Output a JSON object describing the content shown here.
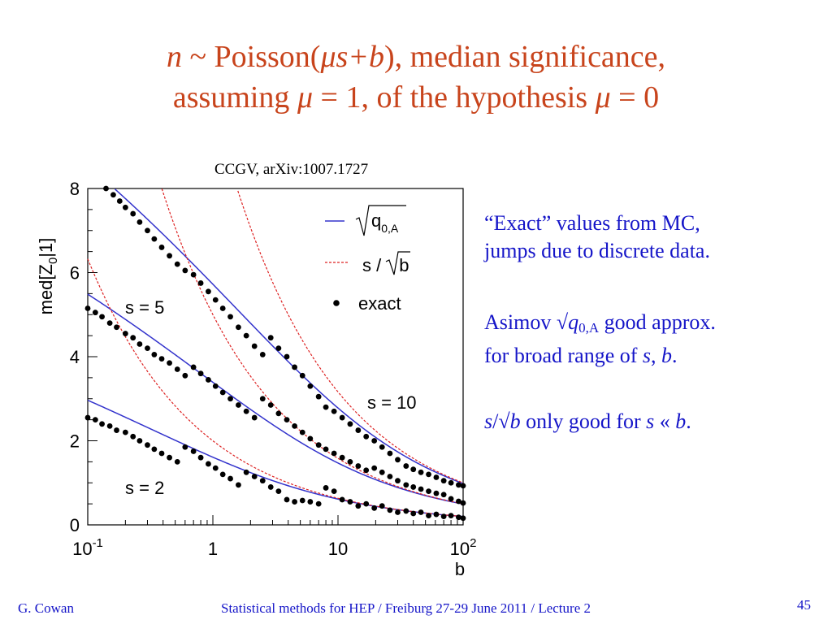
{
  "slide": {
    "title_line1": {
      "n": "n",
      "pre": " ~ Poisson(",
      "mu": "μ",
      "sb": "s+b",
      "post": "),  median significance,"
    },
    "title_line2": {
      "pre": "assuming ",
      "mu1": "μ",
      "mid": " = 1, of the hypothesis ",
      "mu2": "μ",
      "post": " = 0"
    },
    "citation": "CCGV, arXiv:1007.1727",
    "bullets": {
      "b1_line1": "“Exact” values from MC,",
      "b1_line2": "jumps due to discrete data.",
      "b2_a": "Asimov √",
      "b2_q": "q",
      "b2_sub": "0,A",
      "b2_b": " good approx.",
      "b2_line2_pre": "for broad range of ",
      "b2_s": "s",
      "b2_comma": ", ",
      "b2_bv": "b",
      "b2_dot": ".",
      "b3_s": "s",
      "b3_mid": "/√",
      "b3_b": "b",
      "b3_rest": " only good for ",
      "b3_s2": "s",
      "b3_ll": " « ",
      "b3_b2": "b",
      "b3_dot": "."
    },
    "footer_left": "G. Cowan",
    "footer_center": "Statistical methods for HEP / Freiburg 27-29 June 2011 / Lecture 2",
    "page_number": "45"
  },
  "colors": {
    "title": "#c8441c",
    "text_blue": "#1515c8",
    "asimov_line": "#3333cc",
    "s_over_sqrt_b_line": "#dd2222",
    "exact_points": "#000000"
  },
  "chart_data": {
    "type": "line",
    "xscale": "log",
    "xlim": [
      0.1,
      100
    ],
    "ylim": [
      0,
      8
    ],
    "xlabel": "b",
    "ylabel": "med[Z0|1]",
    "ylabel_parts": {
      "a": "med[Z",
      "sub": "0",
      "b": "|1]"
    },
    "x_tick_labels": [
      {
        "value": 0.1,
        "base": "10",
        "exp": "-1"
      },
      {
        "value": 1,
        "base": "1",
        "exp": ""
      },
      {
        "value": 10,
        "base": "10",
        "exp": ""
      },
      {
        "value": 100,
        "base": "10",
        "exp": "2"
      }
    ],
    "y_ticks": [
      0,
      2,
      4,
      6,
      8
    ],
    "legend": {
      "placement": "top-right",
      "asimov_label": {
        "a": "q",
        "sub": "0,A"
      },
      "s_over_sqrt_b_label": {
        "a": "s /",
        "b": "b"
      },
      "exact_label": "exact"
    },
    "curve_labels": [
      {
        "text": "s = 5",
        "s": 5
      },
      {
        "text": "s = 10",
        "s": 10
      },
      {
        "text": "s = 2",
        "s": 2
      }
    ],
    "series": [
      {
        "kind": "asimov",
        "s": 2
      },
      {
        "kind": "asimov",
        "s": 5
      },
      {
        "kind": "asimov",
        "s": 10
      },
      {
        "kind": "s_over_sqrt_b",
        "s": 2
      },
      {
        "kind": "s_over_sqrt_b",
        "s": 5
      },
      {
        "kind": "s_over_sqrt_b",
        "s": 10
      },
      {
        "kind": "exact",
        "s": 10,
        "points": [
          [
            0.14,
            8.0
          ],
          [
            0.16,
            7.85
          ],
          [
            0.18,
            7.7
          ],
          [
            0.2,
            7.55
          ],
          [
            0.23,
            7.4
          ],
          [
            0.26,
            7.2
          ],
          [
            0.3,
            7.0
          ],
          [
            0.34,
            6.8
          ],
          [
            0.39,
            6.6
          ],
          [
            0.45,
            6.4
          ],
          [
            0.52,
            6.2
          ],
          [
            0.6,
            6.05
          ],
          [
            0.7,
            5.95
          ],
          [
            0.8,
            5.75
          ],
          [
            0.92,
            5.55
          ],
          [
            1.05,
            5.35
          ],
          [
            1.2,
            5.15
          ],
          [
            1.38,
            4.95
          ],
          [
            1.6,
            4.7
          ],
          [
            1.85,
            4.5
          ],
          [
            2.15,
            4.25
          ],
          [
            2.5,
            4.05
          ],
          [
            2.9,
            4.45
          ],
          [
            3.35,
            4.2
          ],
          [
            3.9,
            4.0
          ],
          [
            4.5,
            3.75
          ],
          [
            5.2,
            3.55
          ],
          [
            6.0,
            3.3
          ],
          [
            7.0,
            3.05
          ],
          [
            8.0,
            2.8
          ],
          [
            9.3,
            2.7
          ],
          [
            10.8,
            2.55
          ],
          [
            12.5,
            2.4
          ],
          [
            14.5,
            2.25
          ],
          [
            16.8,
            2.1
          ],
          [
            19.5,
            2.0
          ],
          [
            22.5,
            1.85
          ],
          [
            26,
            1.7
          ],
          [
            30,
            1.55
          ],
          [
            35,
            1.4
          ],
          [
            40,
            1.32
          ],
          [
            46,
            1.25
          ],
          [
            53,
            1.2
          ],
          [
            61,
            1.13
          ],
          [
            70,
            1.05
          ],
          [
            80,
            1.0
          ],
          [
            92,
            0.95
          ],
          [
            100,
            0.93
          ]
        ]
      },
      {
        "kind": "exact",
        "s": 5,
        "points": [
          [
            0.1,
            5.15
          ],
          [
            0.115,
            5.05
          ],
          [
            0.13,
            4.95
          ],
          [
            0.15,
            4.8
          ],
          [
            0.17,
            4.7
          ],
          [
            0.2,
            4.55
          ],
          [
            0.23,
            4.45
          ],
          [
            0.26,
            4.3
          ],
          [
            0.3,
            4.2
          ],
          [
            0.34,
            4.05
          ],
          [
            0.39,
            3.95
          ],
          [
            0.45,
            3.85
          ],
          [
            0.52,
            3.7
          ],
          [
            0.6,
            3.55
          ],
          [
            0.7,
            3.75
          ],
          [
            0.8,
            3.6
          ],
          [
            0.92,
            3.45
          ],
          [
            1.05,
            3.3
          ],
          [
            1.2,
            3.15
          ],
          [
            1.38,
            3.0
          ],
          [
            1.6,
            2.85
          ],
          [
            1.85,
            2.7
          ],
          [
            2.15,
            2.55
          ],
          [
            2.5,
            3.0
          ],
          [
            2.9,
            2.85
          ],
          [
            3.35,
            2.65
          ],
          [
            3.9,
            2.5
          ],
          [
            4.5,
            2.35
          ],
          [
            5.2,
            2.2
          ],
          [
            6.0,
            2.05
          ],
          [
            7.0,
            1.9
          ],
          [
            8.0,
            1.8
          ],
          [
            9.3,
            1.7
          ],
          [
            10.8,
            1.6
          ],
          [
            12.5,
            1.5
          ],
          [
            14.5,
            1.4
          ],
          [
            16.8,
            1.3
          ],
          [
            19.5,
            1.35
          ],
          [
            22.5,
            1.25
          ],
          [
            26,
            1.15
          ],
          [
            30,
            1.05
          ],
          [
            35,
            0.95
          ],
          [
            40,
            0.9
          ],
          [
            46,
            0.85
          ],
          [
            53,
            0.8
          ],
          [
            61,
            0.75
          ],
          [
            70,
            0.72
          ],
          [
            80,
            0.62
          ],
          [
            92,
            0.56
          ],
          [
            100,
            0.52
          ]
        ]
      },
      {
        "kind": "exact",
        "s": 2,
        "points": [
          [
            0.1,
            2.55
          ],
          [
            0.115,
            2.5
          ],
          [
            0.13,
            2.4
          ],
          [
            0.15,
            2.35
          ],
          [
            0.17,
            2.25
          ],
          [
            0.2,
            2.2
          ],
          [
            0.23,
            2.1
          ],
          [
            0.26,
            2.0
          ],
          [
            0.3,
            1.9
          ],
          [
            0.34,
            1.8
          ],
          [
            0.39,
            1.7
          ],
          [
            0.45,
            1.6
          ],
          [
            0.52,
            1.5
          ],
          [
            0.6,
            1.85
          ],
          [
            0.7,
            1.75
          ],
          [
            0.8,
            1.6
          ],
          [
            0.92,
            1.45
          ],
          [
            1.05,
            1.35
          ],
          [
            1.2,
            1.2
          ],
          [
            1.38,
            1.1
          ],
          [
            1.6,
            0.95
          ],
          [
            1.85,
            1.25
          ],
          [
            2.15,
            1.15
          ],
          [
            2.5,
            1.05
          ],
          [
            2.9,
            0.9
          ],
          [
            3.35,
            0.8
          ],
          [
            3.9,
            0.6
          ],
          [
            4.5,
            0.55
          ],
          [
            5.2,
            0.58
          ],
          [
            6.0,
            0.55
          ],
          [
            7.0,
            0.5
          ],
          [
            8.0,
            0.88
          ],
          [
            9.3,
            0.8
          ],
          [
            10.8,
            0.6
          ],
          [
            12.5,
            0.55
          ],
          [
            14.5,
            0.45
          ],
          [
            16.8,
            0.5
          ],
          [
            19.5,
            0.4
          ],
          [
            22.5,
            0.45
          ],
          [
            26,
            0.35
          ],
          [
            30,
            0.3
          ],
          [
            35,
            0.33
          ],
          [
            40,
            0.27
          ],
          [
            46,
            0.3
          ],
          [
            53,
            0.22
          ],
          [
            61,
            0.25
          ],
          [
            70,
            0.2
          ],
          [
            80,
            0.22
          ],
          [
            92,
            0.18
          ],
          [
            100,
            0.16
          ]
        ]
      }
    ]
  }
}
